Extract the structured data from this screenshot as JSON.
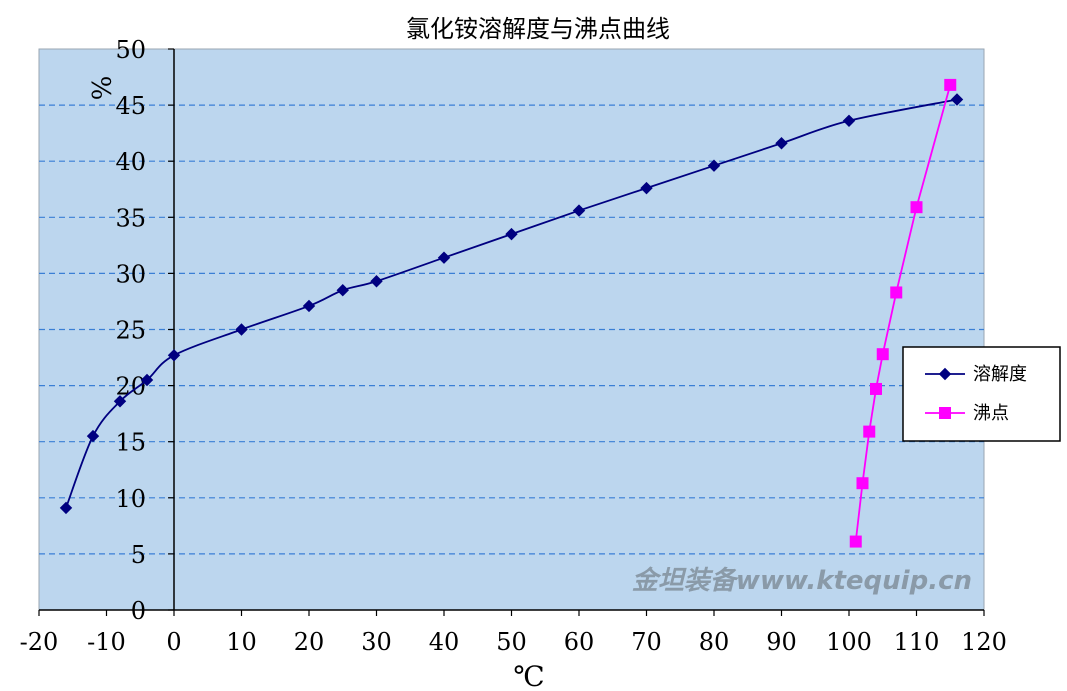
{
  "chart_data": {
    "type": "line",
    "title": "氯化铵溶解度与沸点曲线",
    "xlabel": "℃",
    "ylabel": "%",
    "xlim": [
      -20,
      120
    ],
    "ylim": [
      0,
      50
    ],
    "x_ticks": [
      "-20",
      "-10",
      "0",
      "10",
      "20",
      "30",
      "40",
      "50",
      "60",
      "70",
      "80",
      "90",
      "100",
      "110",
      "120"
    ],
    "y_ticks": [
      "0",
      "5",
      "10",
      "15",
      "20",
      "25",
      "30",
      "35",
      "40",
      "45",
      "50"
    ],
    "grid": "horizontal dashed",
    "legend_position": "right",
    "plot_background": "#bcd6ee",
    "series": [
      {
        "name": "溶解度",
        "color": "#000080",
        "marker": "diamond",
        "points": [
          {
            "x": -16,
            "y": 9.1
          },
          {
            "x": -12,
            "y": 15.5
          },
          {
            "x": -8,
            "y": 18.6
          },
          {
            "x": -4,
            "y": 20.5
          },
          {
            "x": 0,
            "y": 22.7
          },
          {
            "x": 10,
            "y": 25.0
          },
          {
            "x": 20,
            "y": 27.1
          },
          {
            "x": 25,
            "y": 28.5
          },
          {
            "x": 30,
            "y": 29.3
          },
          {
            "x": 40,
            "y": 31.4
          },
          {
            "x": 50,
            "y": 33.5
          },
          {
            "x": 60,
            "y": 35.6
          },
          {
            "x": 70,
            "y": 37.6
          },
          {
            "x": 80,
            "y": 39.6
          },
          {
            "x": 90,
            "y": 41.6
          },
          {
            "x": 100,
            "y": 43.6
          },
          {
            "x": 116,
            "y": 45.5
          }
        ]
      },
      {
        "name": "沸点",
        "color": "#ff00ff",
        "marker": "square",
        "points": [
          {
            "x": 101,
            "y": 6.1
          },
          {
            "x": 102,
            "y": 11.3
          },
          {
            "x": 103,
            "y": 15.9
          },
          {
            "x": 104,
            "y": 19.7
          },
          {
            "x": 105,
            "y": 22.8
          },
          {
            "x": 107,
            "y": 28.3
          },
          {
            "x": 110,
            "y": 35.9
          },
          {
            "x": 115,
            "y": 46.8
          }
        ]
      }
    ]
  },
  "watermark": "金坦装备www.ktequip.cn"
}
